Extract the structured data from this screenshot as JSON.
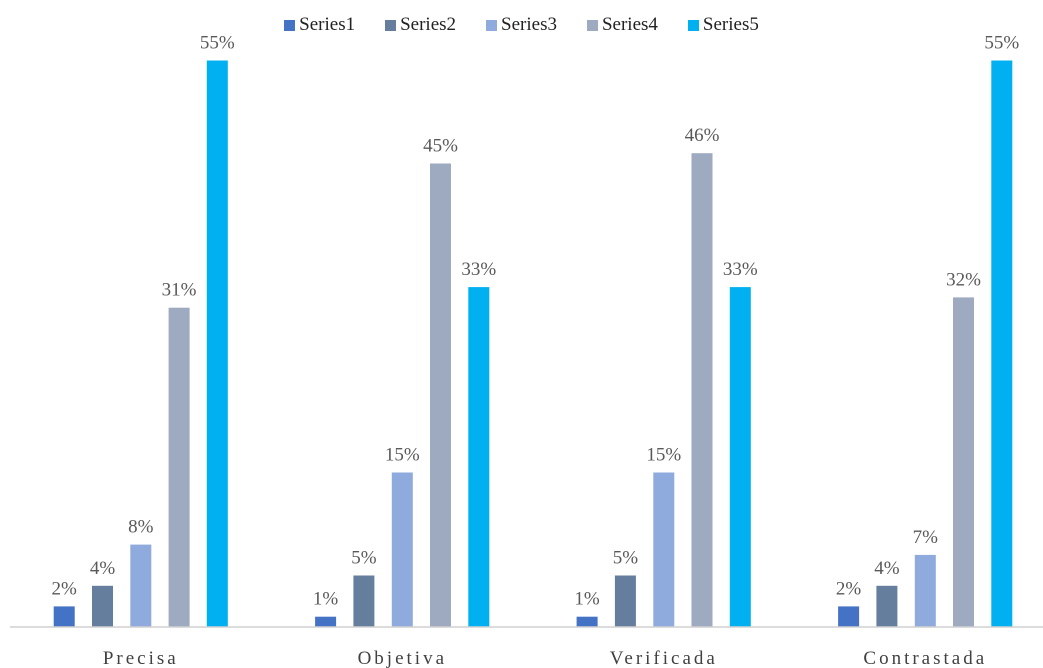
{
  "chart_data": {
    "type": "bar",
    "categories": [
      "Precisa",
      "Objetiva",
      "Verificada",
      "Contrastada"
    ],
    "series": [
      {
        "name": "Series1",
        "color": "#4472C4",
        "values": [
          2,
          1,
          1,
          2
        ],
        "labels": [
          "2%",
          "1%",
          "1%",
          "2%"
        ]
      },
      {
        "name": "Series2",
        "color": "#667E9E",
        "values": [
          4,
          5,
          5,
          4
        ],
        "labels": [
          "4%",
          "5%",
          "5%",
          "4%"
        ]
      },
      {
        "name": "Series3",
        "color": "#8FAADC",
        "values": [
          8,
          15,
          15,
          7
        ],
        "labels": [
          "8%",
          "15%",
          "15%",
          "7%"
        ]
      },
      {
        "name": "Series4",
        "color": "#9DAABF",
        "values": [
          31,
          45,
          46,
          32
        ],
        "labels": [
          "31%",
          "45%",
          "46%",
          "32%"
        ]
      },
      {
        "name": "Series5",
        "color": "#00B0F0",
        "values": [
          55,
          33,
          33,
          55
        ],
        "labels": [
          "55%",
          "33%",
          "33%",
          "55%"
        ]
      }
    ],
    "ylim": [
      0,
      60
    ],
    "grid": false,
    "legend": "top-center"
  }
}
